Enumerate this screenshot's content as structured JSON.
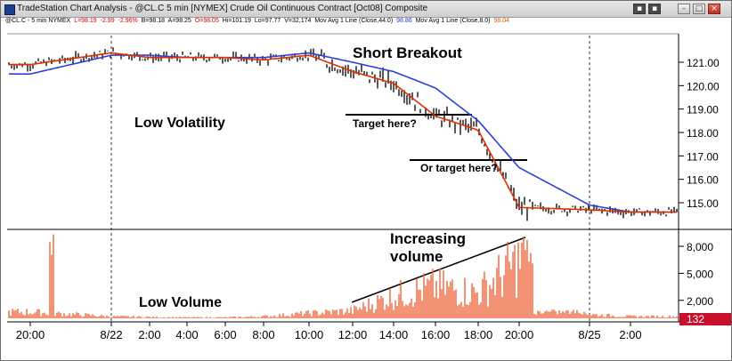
{
  "window": {
    "title": "TradeStation Chart Analysis - @CL.C 5 min [NYMEX] Crude Oil Continuous Contract [Oct08] Composite"
  },
  "info_bar": {
    "symbol": "@CL.C - 5 min  NYMEX",
    "last": "L=98.19",
    "change": "-2.99",
    "change_pct": "-2.96%",
    "bid": "B=98.18",
    "ask": "A=98.25",
    "open": "O=98.05",
    "high": "Hi=101.19",
    "low": "Lo=97.77",
    "volume": "V=32,174",
    "ma1_label": "Mov Avg 1 Line (Close,44.0)",
    "ma1_value": "98.86",
    "ma2_label": "Mov Avg 1 Line (Close,8.0)",
    "ma2_value": "98.04"
  },
  "annotations": {
    "short_breakout": "Short Breakout",
    "low_volatility": "Low Volatility",
    "target_here": "Target here?",
    "or_target_here": "Or target here?",
    "increasing_volume_1": "Increasing",
    "increasing_volume_2": "volume",
    "low_volume": "Low Volume"
  },
  "price_axis": {
    "ticks": [
      "121.00",
      "120.00",
      "119.00",
      "118.00",
      "117.00",
      "116.00",
      "115.00"
    ]
  },
  "volume_axis": {
    "ticks": [
      "8,000",
      "5,000",
      "2,000"
    ],
    "current": "132"
  },
  "time_axis": {
    "ticks": [
      "20:00",
      "8/22",
      "2:00",
      "4:00",
      "6:00",
      "8:00",
      "10:00",
      "12:00",
      "14:00",
      "16:00",
      "18:00",
      "20:00",
      "8/25",
      "2:00"
    ]
  },
  "colors": {
    "price_bars": "#000000",
    "ma_fast": "#e03000",
    "ma_slow": "#2c3fd8",
    "volume": "#f0633a",
    "volume_marker": "#c8102e"
  },
  "chart_data": {
    "type": "line",
    "x": [
      "20:00",
      "8/22",
      "2:00",
      "4:00",
      "6:00",
      "8:00",
      "10:00",
      "12:00",
      "14:00",
      "16:00",
      "18:00",
      "20:00",
      "8/25",
      "2:00"
    ],
    "series": [
      {
        "name": "Mov Avg 1 Line (Close,8.0)",
        "values": [
          120.9,
          121.4,
          121.2,
          121.2,
          121.2,
          121.1,
          121.3,
          120.6,
          120.1,
          118.7,
          118.1,
          114.8,
          114.7,
          114.6
        ]
      },
      {
        "name": "Mov Avg 1 Line (Close,44.0)",
        "values": [
          120.5,
          121.3,
          121.3,
          121.2,
          121.2,
          121.2,
          121.4,
          121.0,
          120.6,
          119.9,
          118.5,
          116.5,
          114.9,
          114.6
        ]
      }
    ],
    "volume": {
      "x": [
        "20:00",
        "8/22",
        "2:00",
        "4:00",
        "6:00",
        "8:00",
        "10:00",
        "12:00",
        "14:00",
        "16:00",
        "18:00",
        "20:00",
        "8/25",
        "2:00"
      ],
      "values": [
        1000,
        300,
        200,
        150,
        150,
        300,
        800,
        1200,
        3500,
        5000,
        4000,
        9000,
        600,
        300
      ]
    },
    "ylim": [
      114.0,
      121.8
    ],
    "volume_ylim": [
      0,
      10000
    ]
  }
}
